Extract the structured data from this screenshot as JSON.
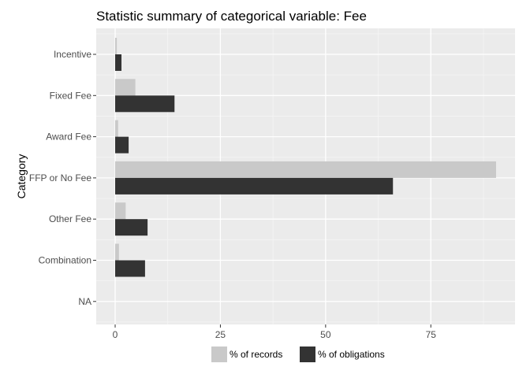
{
  "colors": {
    "panel_background": "#ebebeb",
    "grid_major": "#ffffff",
    "grid_minor": "#f5f5f5",
    "records": "#c9c9c9",
    "obligations": "#333333"
  },
  "chart_data": {
    "type": "bar",
    "orientation": "horizontal",
    "title": "Statistic summary of categorical variable:  Fee",
    "xlabel": "",
    "ylabel": "Category",
    "categories": [
      "Incentive",
      "Fixed Fee",
      "Award Fee",
      "FFP or No Fee",
      "Other Fee",
      "Combination",
      "NA"
    ],
    "series": [
      {
        "name": "% of records",
        "color": "#c9c9c9",
        "values": [
          0.4,
          4.8,
          0.7,
          90.5,
          2.5,
          0.9,
          0
        ]
      },
      {
        "name": "% of obligations",
        "color": "#333333",
        "values": [
          1.5,
          14.1,
          3.2,
          66.0,
          7.7,
          7.1,
          0
        ]
      }
    ],
    "xlim": [
      -4.5,
      95
    ],
    "xticks": [
      0,
      25,
      50,
      75
    ],
    "grid": true,
    "legend_position": "bottom"
  }
}
